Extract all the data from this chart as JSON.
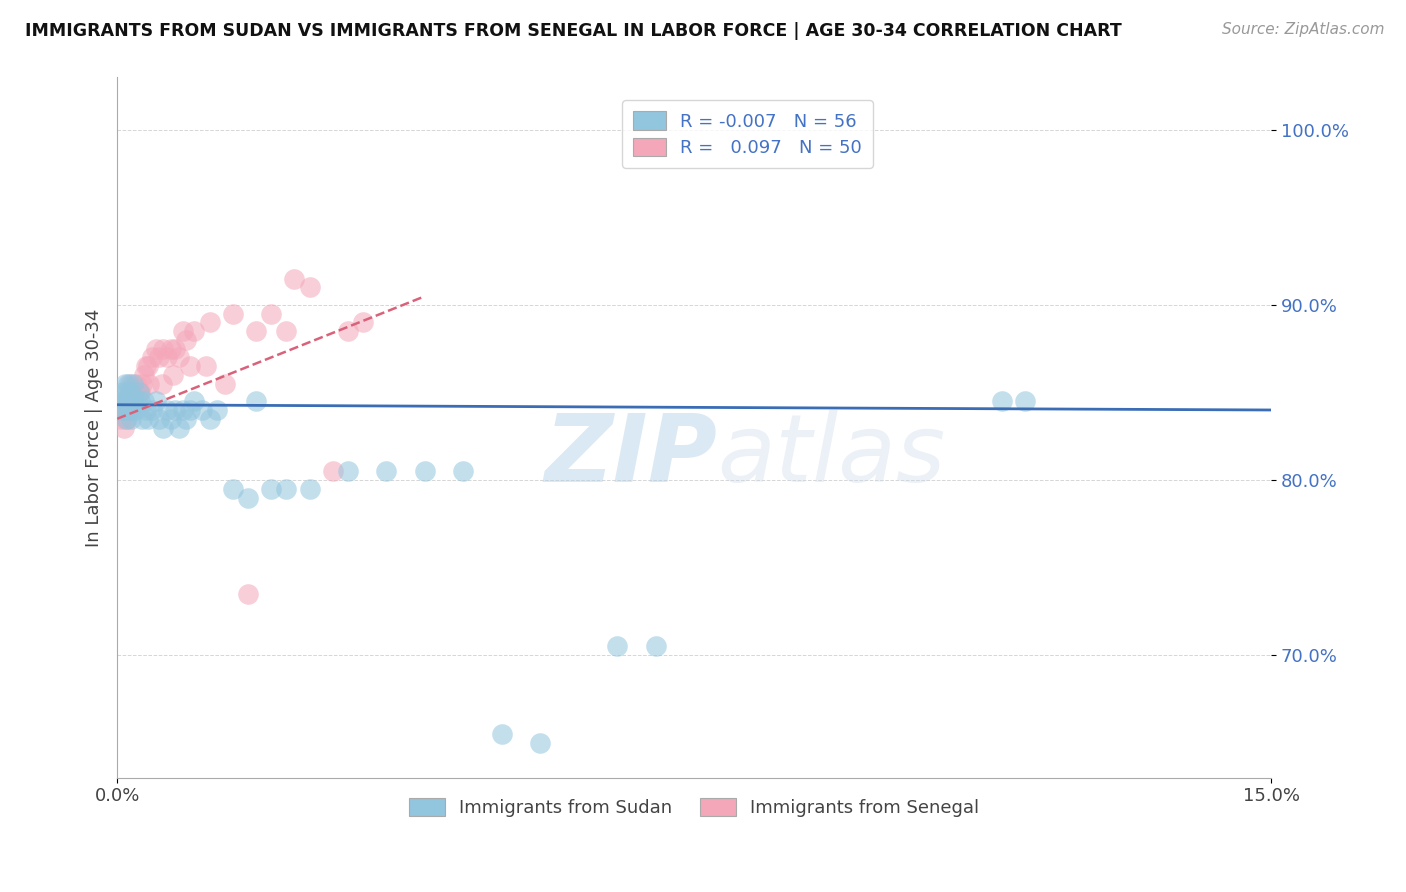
{
  "title": "IMMIGRANTS FROM SUDAN VS IMMIGRANTS FROM SENEGAL IN LABOR FORCE | AGE 30-34 CORRELATION CHART",
  "source": "Source: ZipAtlas.com",
  "ylabel": "In Labor Force | Age 30-34",
  "xlim": [
    0.0,
    15.0
  ],
  "ylim": [
    63.0,
    103.0
  ],
  "yticks": [
    70.0,
    80.0,
    90.0,
    100.0
  ],
  "xticks": [
    0.0,
    15.0
  ],
  "xtick_labels": [
    "0.0%",
    "15.0%"
  ],
  "ytick_labels": [
    "70.0%",
    "80.0%",
    "90.0%",
    "100.0%"
  ],
  "legend_r_sudan": "-0.007",
  "legend_n_sudan": "56",
  "legend_r_senegal": "0.097",
  "legend_n_senegal": "50",
  "sudan_color": "#92c5de",
  "senegal_color": "#f4a7b9",
  "sudan_line_color": "#3a6db5",
  "senegal_line_color": "#d9627a",
  "watermark_zip": "ZIP",
  "watermark_atlas": "atlas",
  "sudan_x": [
    0.05,
    0.07,
    0.08,
    0.09,
    0.1,
    0.1,
    0.11,
    0.12,
    0.13,
    0.14,
    0.15,
    0.16,
    0.17,
    0.18,
    0.19,
    0.2,
    0.22,
    0.23,
    0.25,
    0.28,
    0.3,
    0.32,
    0.35,
    0.38,
    0.4,
    0.45,
    0.5,
    0.55,
    0.6,
    0.65,
    0.7,
    0.75,
    0.8,
    0.85,
    0.9,
    0.95,
    1.0,
    1.1,
    1.2,
    1.3,
    1.5,
    1.7,
    1.8,
    2.0,
    2.2,
    2.5,
    3.0,
    3.5,
    4.0,
    4.5,
    5.0,
    5.5,
    6.5,
    7.0,
    11.5,
    11.8
  ],
  "sudan_y": [
    84.0,
    84.5,
    85.0,
    84.5,
    84.0,
    85.5,
    83.5,
    85.0,
    84.5,
    85.5,
    84.0,
    84.5,
    85.0,
    83.5,
    84.0,
    85.5,
    84.5,
    84.0,
    84.5,
    85.0,
    84.5,
    83.5,
    84.5,
    84.0,
    83.5,
    84.0,
    84.5,
    83.5,
    83.0,
    84.0,
    83.5,
    84.0,
    83.0,
    84.0,
    83.5,
    84.0,
    84.5,
    84.0,
    83.5,
    84.0,
    79.5,
    79.0,
    84.5,
    79.5,
    79.5,
    79.5,
    80.5,
    80.5,
    80.5,
    80.5,
    65.5,
    65.0,
    70.5,
    70.5,
    84.5,
    84.5
  ],
  "senegal_x": [
    0.05,
    0.07,
    0.08,
    0.09,
    0.1,
    0.11,
    0.12,
    0.13,
    0.14,
    0.15,
    0.16,
    0.17,
    0.18,
    0.2,
    0.22,
    0.25,
    0.28,
    0.3,
    0.35,
    0.38,
    0.4,
    0.45,
    0.5,
    0.55,
    0.6,
    0.65,
    0.7,
    0.75,
    0.8,
    0.85,
    0.9,
    1.0,
    1.2,
    1.5,
    1.8,
    2.0,
    2.2,
    2.5,
    3.0,
    3.2,
    0.32,
    0.42,
    0.58,
    0.72,
    0.95,
    1.15,
    1.4,
    1.7,
    2.3,
    2.8
  ],
  "senegal_y": [
    83.5,
    84.0,
    84.5,
    83.0,
    84.0,
    84.5,
    84.0,
    83.5,
    84.0,
    85.0,
    84.5,
    85.5,
    84.5,
    85.0,
    85.0,
    85.5,
    85.0,
    85.0,
    86.0,
    86.5,
    86.5,
    87.0,
    87.5,
    87.0,
    87.5,
    87.0,
    87.5,
    87.5,
    87.0,
    88.5,
    88.0,
    88.5,
    89.0,
    89.5,
    88.5,
    89.5,
    88.5,
    91.0,
    88.5,
    89.0,
    85.5,
    85.5,
    85.5,
    86.0,
    86.5,
    86.5,
    85.5,
    73.5,
    91.5,
    80.5
  ],
  "sudan_trendline_x": [
    0.0,
    15.0
  ],
  "sudan_trendline_y": [
    84.3,
    84.0
  ],
  "senegal_trendline_x": [
    0.0,
    4.0
  ],
  "senegal_trendline_y": [
    83.5,
    90.5
  ]
}
